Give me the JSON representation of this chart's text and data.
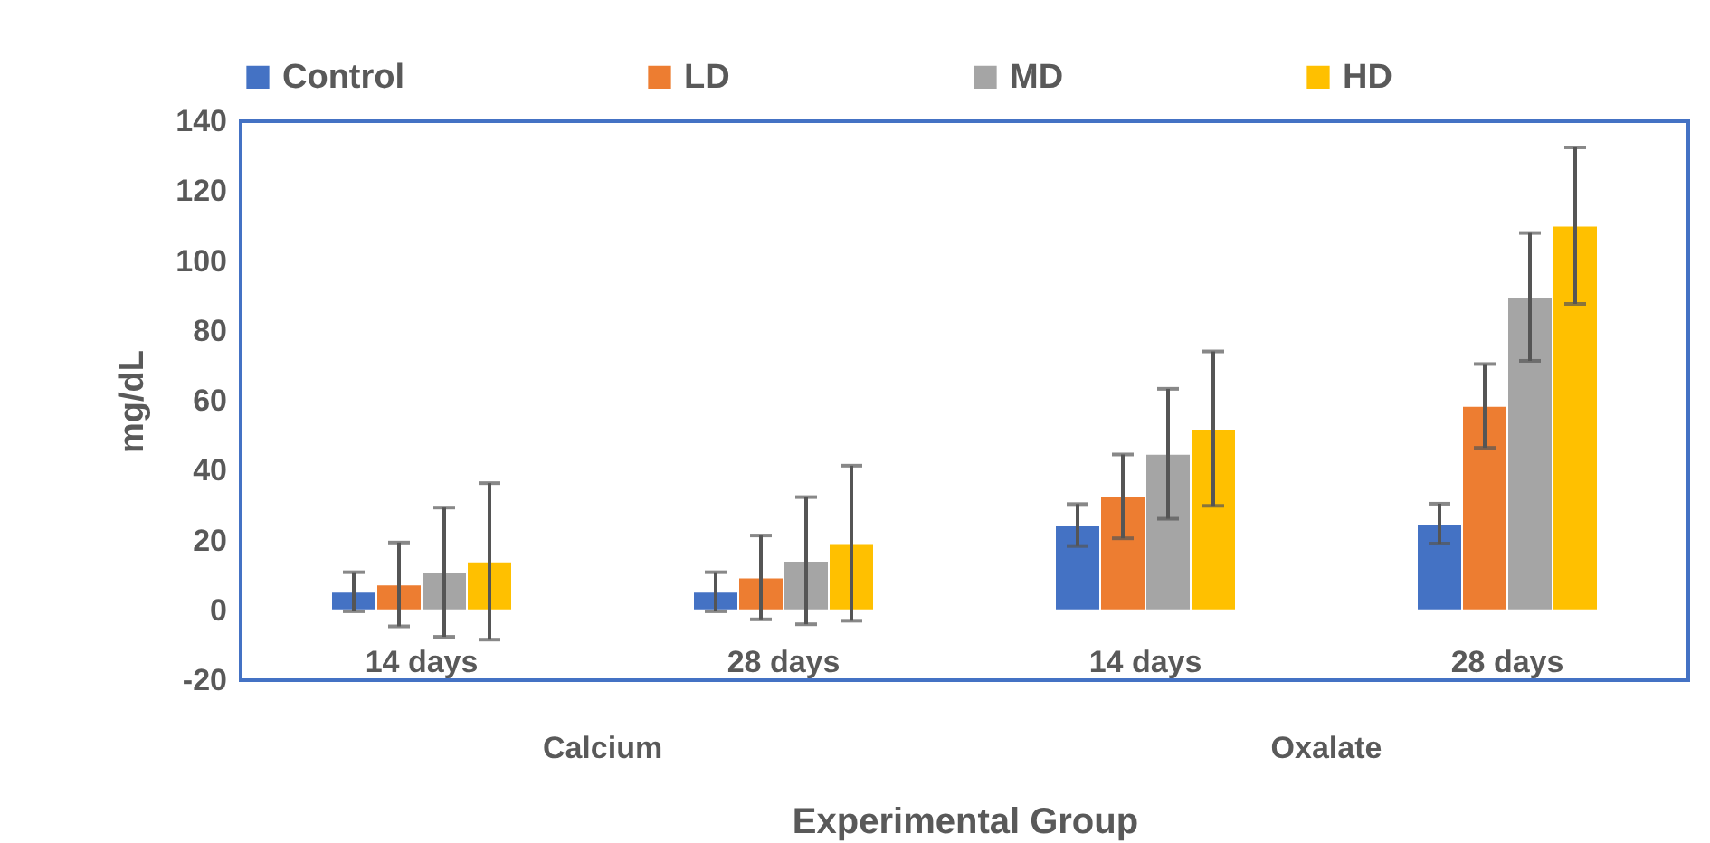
{
  "chart_data": {
    "type": "bar",
    "xlabel": "Experimental Group",
    "ylabel": "mg/dL",
    "categories": [
      "14 days",
      "28 days",
      "14 days",
      "28 days"
    ],
    "series": [
      {
        "name": "Control",
        "color": "#4472c4",
        "values": [
          5.3,
          5.3,
          24.4,
          24.8
        ],
        "errors": [
          5.6,
          5.6,
          6,
          5.7
        ]
      },
      {
        "name": "LD",
        "color": "#ed7d31",
        "values": [
          7.4,
          9.4,
          32.6,
          58.5
        ],
        "errors": [
          12,
          12,
          12,
          12
        ]
      },
      {
        "name": "MD",
        "color": "#a5a5a5",
        "values": [
          10.9,
          14.2,
          44.8,
          89.7
        ],
        "errors": [
          18.5,
          18.2,
          18.6,
          18.3
        ]
      },
      {
        "name": "HD",
        "color": "#ffc000",
        "values": [
          14,
          19.2,
          52,
          110.1
        ],
        "errors": [
          22.4,
          22.2,
          22.1,
          22.4
        ]
      }
    ],
    "annotations": [
      "Calcium",
      "Oxalate"
    ],
    "ylim": [
      -20,
      140
    ],
    "yticks": [
      -20,
      0,
      20,
      40,
      60,
      80,
      100,
      120,
      140
    ],
    "grid": false,
    "legend": "top"
  }
}
